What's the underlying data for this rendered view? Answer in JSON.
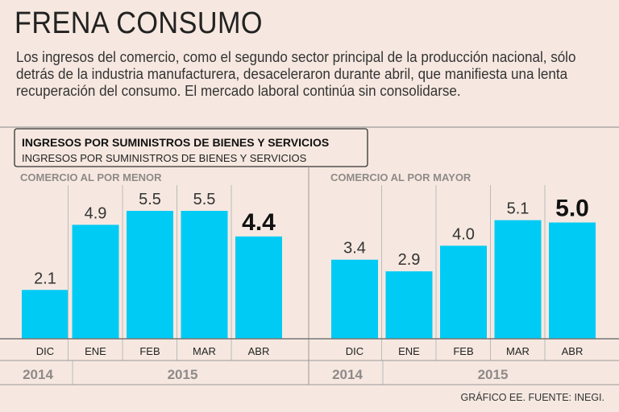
{
  "header": {
    "title": "FRENA CONSUMO",
    "description": "Los ingresos del comercio, como el segundo sector principal de la producción nacional, sólo detrás de la industria manufacturera, desaceleraron durante abril, que manifiesta una lenta recuperación del consumo. El mercado laboral continúa sin consolidarse."
  },
  "chart_data": [
    {
      "type": "bar",
      "title": "INGRESOS POR SUMINISTROS DE BIENES Y SERVICIOS",
      "subtitle": "INGRESOS POR SUMINISTROS DE BIENES Y SERVICIOS",
      "panel": "COMERCIO AL POR MENOR",
      "categories": [
        "DIC",
        "ENE",
        "FEB",
        "MAR",
        "ABR"
      ],
      "values": [
        2.1,
        4.9,
        5.5,
        5.5,
        4.4
      ],
      "years": [
        {
          "label": "2014",
          "span": 1
        },
        {
          "label": "2015",
          "span": 4
        }
      ],
      "highlight": "ABR",
      "ylim": [
        0,
        6
      ]
    },
    {
      "type": "bar",
      "panel": "COMERCIO AL POR MAYOR",
      "categories": [
        "DIC",
        "ENE",
        "FEB",
        "MAR",
        "ABR"
      ],
      "values": [
        3.4,
        2.9,
        4.0,
        5.1,
        5.0
      ],
      "years": [
        {
          "label": "2014",
          "span": 1
        },
        {
          "label": "2015",
          "span": 4
        }
      ],
      "highlight": "ABR",
      "ylim": [
        0,
        6
      ]
    }
  ],
  "source": "GRÁFICO EE. FUENTE: INEGI.",
  "colors": {
    "bar": "#00cbf5",
    "background": "#f6e8e0",
    "muted": "#8f8a88"
  }
}
